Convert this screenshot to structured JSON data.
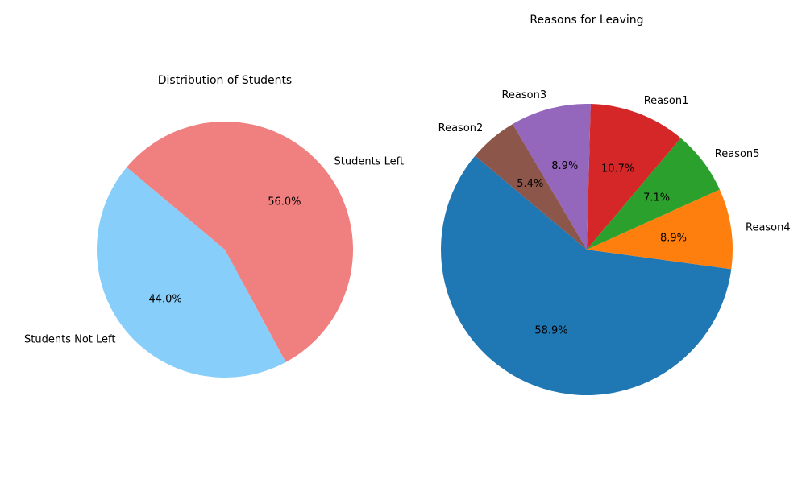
{
  "chart_data": [
    {
      "type": "pie",
      "title": "Distribution of Students",
      "start_angle_deg": 140,
      "direction": "counterclockwise",
      "slices": [
        {
          "label": "Students Not Left",
          "value": 44.0,
          "pct_label": "44.0%",
          "color": "#87CEFA"
        },
        {
          "label": "Students Left",
          "value": 56.0,
          "pct_label": "56.0%",
          "color": "#F08080"
        }
      ]
    },
    {
      "type": "pie",
      "title": "Reasons for Leaving",
      "start_angle_deg": 140,
      "direction": "counterclockwise",
      "slices": [
        {
          "label": "",
          "value": 58.9,
          "pct_label": "58.9%",
          "color": "#1f77b4"
        },
        {
          "label": "Reason4",
          "value": 8.9,
          "pct_label": "8.9%",
          "color": "#ff7f0e"
        },
        {
          "label": "Reason5",
          "value": 7.1,
          "pct_label": "7.1%",
          "color": "#2ca02c"
        },
        {
          "label": "Reason1",
          "value": 10.7,
          "pct_label": "10.7%",
          "color": "#d62728"
        },
        {
          "label": "Reason3",
          "value": 8.9,
          "pct_label": "8.9%",
          "color": "#9467bd"
        },
        {
          "label": "Reason2",
          "value": 5.4,
          "pct_label": "5.4%",
          "color": "#8c564b"
        }
      ]
    }
  ]
}
